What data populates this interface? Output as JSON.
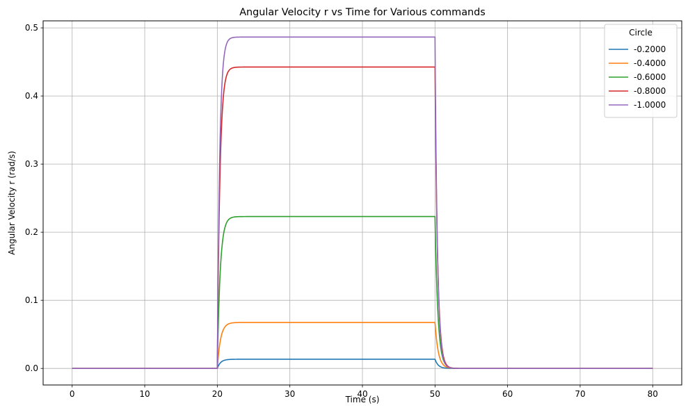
{
  "chart_data": {
    "type": "line",
    "title": "Angular Velocity r vs Time for Various commands",
    "xlabel": "Time (s)",
    "ylabel": "Angular Velocity r (rad/s)",
    "xlim": [
      -4,
      84
    ],
    "ylim": [
      -0.0243,
      0.5103
    ],
    "xticks": [
      0,
      10,
      20,
      30,
      40,
      50,
      60,
      70,
      80
    ],
    "xtick_labels": [
      "0",
      "10",
      "20",
      "30",
      "40",
      "50",
      "60",
      "70",
      "80"
    ],
    "yticks": [
      0.0,
      0.1,
      0.2,
      0.3,
      0.4,
      0.5
    ],
    "ytick_labels": [
      "0.0",
      "0.1",
      "0.2",
      "0.3",
      "0.4",
      "0.5"
    ],
    "grid": true,
    "legend": {
      "title": "Circle",
      "placement": "top-right"
    },
    "step": {
      "t_on": 20,
      "t_off": 50,
      "t_end": 80
    },
    "series": [
      {
        "name": "-0.2000",
        "color": "#1f77b4",
        "steady": 0.0135,
        "tau": 0.45
      },
      {
        "name": "-0.4000",
        "color": "#ff7f0e",
        "steady": 0.0675,
        "tau": 0.45
      },
      {
        "name": "-0.6000",
        "color": "#2ca02c",
        "steady": 0.223,
        "tau": 0.4
      },
      {
        "name": "-0.8000",
        "color": "#d62728",
        "steady": 0.4425,
        "tau": 0.36
      },
      {
        "name": "-1.0000",
        "color": "#9467bd",
        "steady": 0.4865,
        "tau": 0.33
      }
    ]
  }
}
